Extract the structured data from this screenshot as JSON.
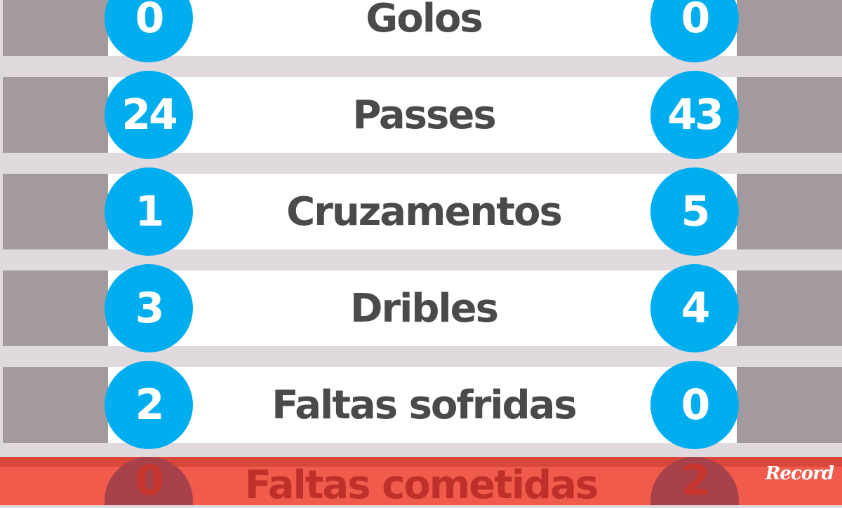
{
  "stats": [
    {
      "label": "Golos",
      "left": "0",
      "right": "0"
    },
    {
      "label": "Passes",
      "left": "24",
      "right": "43"
    },
    {
      "label": "Cruzamentos",
      "left": "1",
      "right": "5"
    },
    {
      "label": "Dribles",
      "left": "3",
      "right": "4"
    },
    {
      "label": "Faltas sofridas",
      "left": "2",
      "right": "0"
    }
  ],
  "highlighted": {
    "label": "Faltas cometidas",
    "left": "0",
    "right": "2"
  },
  "logo": "Record",
  "colors": {
    "circle": "#00aeef",
    "highlight": "#d9463a"
  }
}
